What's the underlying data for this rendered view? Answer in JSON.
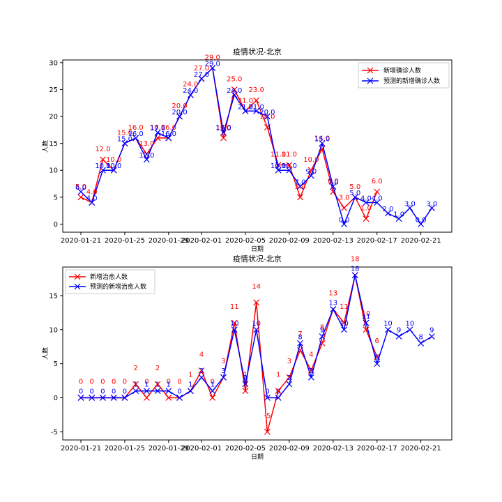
{
  "chart_data": [
    {
      "type": "line",
      "title": "疫情状况-北京",
      "xlabel": "日期",
      "ylabel": "人数",
      "ylim": [
        -1.5,
        30.5
      ],
      "yticks": [
        0,
        5,
        10,
        15,
        20,
        25,
        30
      ],
      "x_dates": [
        "2020-01-21",
        "2020-01-22",
        "2020-01-23",
        "2020-01-24",
        "2020-01-25",
        "2020-01-26",
        "2020-01-27",
        "2020-01-28",
        "2020-01-29",
        "2020-01-30",
        "2020-01-31",
        "2020-02-01",
        "2020-02-02",
        "2020-02-03",
        "2020-02-04",
        "2020-02-05",
        "2020-02-06",
        "2020-02-07",
        "2020-02-08",
        "2020-02-09",
        "2020-02-10",
        "2020-02-11",
        "2020-02-12",
        "2020-02-13",
        "2020-02-14",
        "2020-02-15",
        "2020-02-16",
        "2020-02-17",
        "2020-02-18",
        "2020-02-19",
        "2020-02-20",
        "2020-02-21",
        "2020-02-22"
      ],
      "xtick_labels": [
        "2020-01-21",
        "2020-01-25",
        "2020-01-29",
        "2020-02-01",
        "2020-02-05",
        "2020-02-09",
        "2020-02-13",
        "2020-02-17",
        "2020-02-21"
      ],
      "legend_position": "upper right",
      "label_format": "decimal1",
      "series": [
        {
          "name": "新增确诊人数",
          "color": "#ff0000",
          "marker": "x",
          "values": [
            5,
            4,
            12,
            10,
            15,
            16,
            13,
            16,
            16,
            20,
            24,
            27,
            29,
            16,
            25,
            21,
            23,
            18,
            11,
            11,
            5,
            10,
            14,
            6,
            3,
            5,
            1,
            6
          ]
        },
        {
          "name": "预测的新增确诊人数",
          "color": "#0000ff",
          "marker": "x",
          "values": [
            6,
            4,
            10,
            10,
            15,
            16,
            12,
            17,
            16,
            20,
            24,
            27,
            29,
            17,
            24,
            21,
            21,
            20,
            10,
            10,
            7,
            9,
            15,
            7,
            0,
            5,
            4,
            4,
            2,
            1,
            3,
            0,
            3
          ]
        }
      ]
    },
    {
      "type": "line",
      "title": "疫情状况-北京",
      "xlabel": "日期",
      "ylabel": "人数",
      "ylim": [
        -6.2,
        19.2
      ],
      "yticks": [
        -5,
        0,
        5,
        10,
        15
      ],
      "x_dates": [
        "2020-01-21",
        "2020-01-22",
        "2020-01-23",
        "2020-01-24",
        "2020-01-25",
        "2020-01-26",
        "2020-01-27",
        "2020-01-28",
        "2020-01-29",
        "2020-01-30",
        "2020-01-31",
        "2020-02-01",
        "2020-02-02",
        "2020-02-03",
        "2020-02-04",
        "2020-02-05",
        "2020-02-06",
        "2020-02-07",
        "2020-02-08",
        "2020-02-09",
        "2020-02-10",
        "2020-02-11",
        "2020-02-12",
        "2020-02-13",
        "2020-02-14",
        "2020-02-15",
        "2020-02-16",
        "2020-02-17",
        "2020-02-18",
        "2020-02-19",
        "2020-02-20",
        "2020-02-21",
        "2020-02-22"
      ],
      "xtick_labels": [
        "2020-01-21",
        "2020-01-25",
        "2020-01-29",
        "2020-02-01",
        "2020-02-05",
        "2020-02-09",
        "2020-02-13",
        "2020-02-17",
        "2020-02-21"
      ],
      "legend_position": "upper left",
      "label_format": "integer",
      "series": [
        {
          "name": "新增治愈人数",
          "color": "#ff0000",
          "marker": "x",
          "values": [
            0,
            0,
            0,
            0,
            0,
            2,
            0,
            2,
            0,
            0,
            1,
            4,
            0,
            3,
            11,
            1,
            14,
            -5,
            1,
            3,
            7,
            4,
            8,
            13,
            11,
            18,
            10,
            6
          ]
        },
        {
          "name": "预测的新增治愈人数",
          "color": "#0000ff",
          "marker": "x",
          "values": [
            0,
            0,
            0,
            0,
            0,
            1,
            1,
            1,
            1,
            0,
            1,
            3,
            1,
            3,
            10,
            2,
            10,
            0,
            0,
            2,
            8,
            3,
            9,
            13,
            10,
            18,
            11,
            5,
            10,
            9,
            10,
            8,
            9
          ]
        }
      ]
    }
  ]
}
